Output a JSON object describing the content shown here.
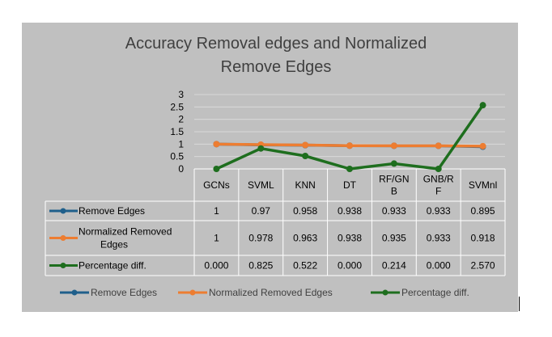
{
  "chart_data": {
    "type": "line",
    "title_lines": [
      "Accuracy Removal edges and Normalized",
      "Remove Edges"
    ],
    "categories": [
      [
        "GCNs"
      ],
      [
        "SVML"
      ],
      [
        "KNN"
      ],
      [
        "DT"
      ],
      [
        "RF/GN",
        "B"
      ],
      [
        "GNB/R",
        "F"
      ],
      [
        "SVMnl"
      ]
    ],
    "y_ticks": [
      "3",
      "2.5",
      "2",
      "1.5",
      "1",
      "0.5",
      "0"
    ],
    "ylim": [
      0,
      3
    ],
    "grid": true,
    "legend_position": "bottom",
    "data_table": true,
    "series": [
      {
        "name_lines": [
          "Remove Edges"
        ],
        "legend_name": "Remove Edges",
        "color": "#1f5f8b",
        "values": [
          1,
          0.97,
          0.958,
          0.938,
          0.933,
          0.933,
          0.895
        ],
        "cells": [
          "1",
          "0.97",
          "0.958",
          "0.938",
          "0.933",
          "0.933",
          "0.895"
        ]
      },
      {
        "name_lines": [
          "Normalized Removed",
          "Edges"
        ],
        "legend_name": "Normalized Removed Edges",
        "color": "#ed7d31",
        "values": [
          1,
          0.978,
          0.963,
          0.938,
          0.935,
          0.933,
          0.918
        ],
        "cells": [
          "1",
          "0.978",
          "0.963",
          "0.938",
          "0.935",
          "0.933",
          "0.918"
        ]
      },
      {
        "name_lines": [
          "Percentage diff."
        ],
        "legend_name": "Percentage diff.",
        "color": "#1e6e1e",
        "values": [
          0.0,
          0.825,
          0.522,
          0.0,
          0.214,
          0.0,
          2.57
        ],
        "cells": [
          "0.000",
          "0.825",
          "0.522",
          "0.000",
          "0.214",
          "0.000",
          "2.570"
        ]
      }
    ]
  }
}
